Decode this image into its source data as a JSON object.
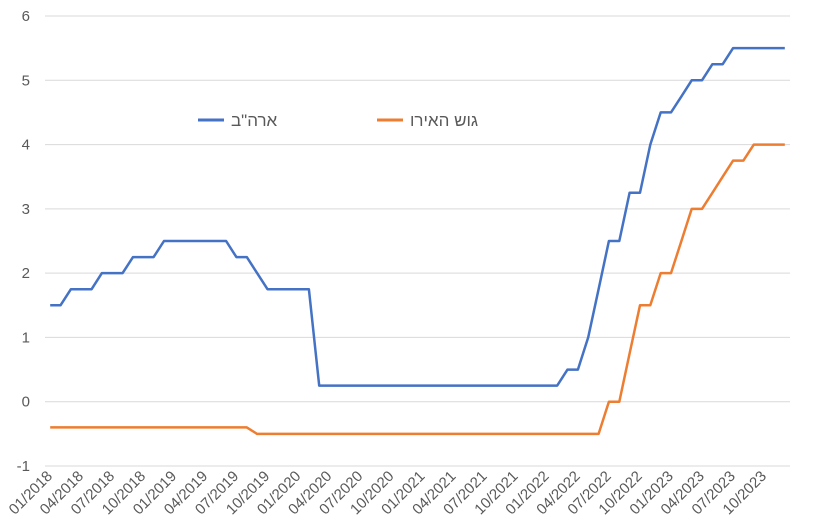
{
  "chart_data": {
    "type": "line",
    "title": "",
    "xlabel": "",
    "ylabel": "",
    "ylim": [
      -1,
      6
    ],
    "yticks": [
      -1,
      0,
      1,
      2,
      3,
      4,
      5,
      6
    ],
    "grid": "horizontal",
    "legend_placement": "top-center",
    "x_tick_labels": [
      "01/2018",
      "04/2018",
      "07/2018",
      "10/2018",
      "01/2019",
      "04/2019",
      "07/2019",
      "10/2019",
      "01/2020",
      "04/2020",
      "07/2020",
      "10/2020",
      "01/2021",
      "04/2021",
      "07/2021",
      "10/2021",
      "01/2022",
      "04/2022",
      "07/2022",
      "10/2022",
      "01/2023",
      "04/2023",
      "07/2023",
      "10/2023"
    ],
    "series": [
      {
        "name": "ארה\"ב",
        "color": "#4472C4",
        "points": [
          [
            "01/2018",
            1.5
          ],
          [
            "02/2018",
            1.5
          ],
          [
            "03/2018",
            1.75
          ],
          [
            "04/2018",
            1.75
          ],
          [
            "05/2018",
            1.75
          ],
          [
            "06/2018",
            2.0
          ],
          [
            "07/2018",
            2.0
          ],
          [
            "08/2018",
            2.0
          ],
          [
            "09/2018",
            2.25
          ],
          [
            "10/2018",
            2.25
          ],
          [
            "11/2018",
            2.25
          ],
          [
            "12/2018",
            2.5
          ],
          [
            "01/2019",
            2.5
          ],
          [
            "02/2019",
            2.5
          ],
          [
            "03/2019",
            2.5
          ],
          [
            "04/2019",
            2.5
          ],
          [
            "05/2019",
            2.5
          ],
          [
            "06/2019",
            2.5
          ],
          [
            "07/2019",
            2.25
          ],
          [
            "08/2019",
            2.25
          ],
          [
            "09/2019",
            2.0
          ],
          [
            "10/2019",
            1.75
          ],
          [
            "11/2019",
            1.75
          ],
          [
            "12/2019",
            1.75
          ],
          [
            "01/2020",
            1.75
          ],
          [
            "02/2020",
            1.75
          ],
          [
            "03/2020",
            0.25
          ],
          [
            "04/2020",
            0.25
          ],
          [
            "05/2020",
            0.25
          ],
          [
            "06/2020",
            0.25
          ],
          [
            "07/2020",
            0.25
          ],
          [
            "08/2020",
            0.25
          ],
          [
            "09/2020",
            0.25
          ],
          [
            "10/2020",
            0.25
          ],
          [
            "11/2020",
            0.25
          ],
          [
            "12/2020",
            0.25
          ],
          [
            "01/2021",
            0.25
          ],
          [
            "02/2021",
            0.25
          ],
          [
            "03/2021",
            0.25
          ],
          [
            "04/2021",
            0.25
          ],
          [
            "05/2021",
            0.25
          ],
          [
            "06/2021",
            0.25
          ],
          [
            "07/2021",
            0.25
          ],
          [
            "08/2021",
            0.25
          ],
          [
            "09/2021",
            0.25
          ],
          [
            "10/2021",
            0.25
          ],
          [
            "11/2021",
            0.25
          ],
          [
            "12/2021",
            0.25
          ],
          [
            "01/2022",
            0.25
          ],
          [
            "02/2022",
            0.25
          ],
          [
            "03/2022",
            0.5
          ],
          [
            "04/2022",
            0.5
          ],
          [
            "05/2022",
            1.0
          ],
          [
            "06/2022",
            1.75
          ],
          [
            "07/2022",
            2.5
          ],
          [
            "08/2022",
            2.5
          ],
          [
            "09/2022",
            3.25
          ],
          [
            "10/2022",
            3.25
          ],
          [
            "11/2022",
            4.0
          ],
          [
            "12/2022",
            4.5
          ],
          [
            "01/2023",
            4.5
          ],
          [
            "02/2023",
            4.75
          ],
          [
            "03/2023",
            5.0
          ],
          [
            "04/2023",
            5.0
          ],
          [
            "05/2023",
            5.25
          ],
          [
            "06/2023",
            5.25
          ],
          [
            "07/2023",
            5.5
          ],
          [
            "08/2023",
            5.5
          ],
          [
            "09/2023",
            5.5
          ],
          [
            "10/2023",
            5.5
          ],
          [
            "11/2023",
            5.5
          ],
          [
            "12/2023",
            5.5
          ]
        ]
      },
      {
        "name": "גוש האירו",
        "color": "#ED7D31",
        "points": [
          [
            "01/2018",
            -0.4
          ],
          [
            "02/2018",
            -0.4
          ],
          [
            "03/2018",
            -0.4
          ],
          [
            "04/2018",
            -0.4
          ],
          [
            "05/2018",
            -0.4
          ],
          [
            "06/2018",
            -0.4
          ],
          [
            "07/2018",
            -0.4
          ],
          [
            "08/2018",
            -0.4
          ],
          [
            "09/2018",
            -0.4
          ],
          [
            "10/2018",
            -0.4
          ],
          [
            "11/2018",
            -0.4
          ],
          [
            "12/2018",
            -0.4
          ],
          [
            "01/2019",
            -0.4
          ],
          [
            "02/2019",
            -0.4
          ],
          [
            "03/2019",
            -0.4
          ],
          [
            "04/2019",
            -0.4
          ],
          [
            "05/2019",
            -0.4
          ],
          [
            "06/2019",
            -0.4
          ],
          [
            "07/2019",
            -0.4
          ],
          [
            "08/2019",
            -0.4
          ],
          [
            "09/2019",
            -0.5
          ],
          [
            "10/2019",
            -0.5
          ],
          [
            "11/2019",
            -0.5
          ],
          [
            "12/2019",
            -0.5
          ],
          [
            "01/2020",
            -0.5
          ],
          [
            "02/2020",
            -0.5
          ],
          [
            "03/2020",
            -0.5
          ],
          [
            "04/2020",
            -0.5
          ],
          [
            "05/2020",
            -0.5
          ],
          [
            "06/2020",
            -0.5
          ],
          [
            "07/2020",
            -0.5
          ],
          [
            "08/2020",
            -0.5
          ],
          [
            "09/2020",
            -0.5
          ],
          [
            "10/2020",
            -0.5
          ],
          [
            "11/2020",
            -0.5
          ],
          [
            "12/2020",
            -0.5
          ],
          [
            "01/2021",
            -0.5
          ],
          [
            "02/2021",
            -0.5
          ],
          [
            "03/2021",
            -0.5
          ],
          [
            "04/2021",
            -0.5
          ],
          [
            "05/2021",
            -0.5
          ],
          [
            "06/2021",
            -0.5
          ],
          [
            "07/2021",
            -0.5
          ],
          [
            "08/2021",
            -0.5
          ],
          [
            "09/2021",
            -0.5
          ],
          [
            "10/2021",
            -0.5
          ],
          [
            "11/2021",
            -0.5
          ],
          [
            "12/2021",
            -0.5
          ],
          [
            "01/2022",
            -0.5
          ],
          [
            "02/2022",
            -0.5
          ],
          [
            "03/2022",
            -0.5
          ],
          [
            "04/2022",
            -0.5
          ],
          [
            "05/2022",
            -0.5
          ],
          [
            "06/2022",
            -0.5
          ],
          [
            "07/2022",
            0.0
          ],
          [
            "08/2022",
            0.0
          ],
          [
            "09/2022",
            0.75
          ],
          [
            "10/2022",
            1.5
          ],
          [
            "11/2022",
            1.5
          ],
          [
            "12/2022",
            2.0
          ],
          [
            "01/2023",
            2.0
          ],
          [
            "02/2023",
            2.5
          ],
          [
            "03/2023",
            3.0
          ],
          [
            "04/2023",
            3.0
          ],
          [
            "05/2023",
            3.25
          ],
          [
            "06/2023",
            3.5
          ],
          [
            "07/2023",
            3.75
          ],
          [
            "08/2023",
            3.75
          ],
          [
            "09/2023",
            4.0
          ],
          [
            "10/2023",
            4.0
          ],
          [
            "11/2023",
            4.0
          ],
          [
            "12/2023",
            4.0
          ]
        ]
      }
    ]
  }
}
